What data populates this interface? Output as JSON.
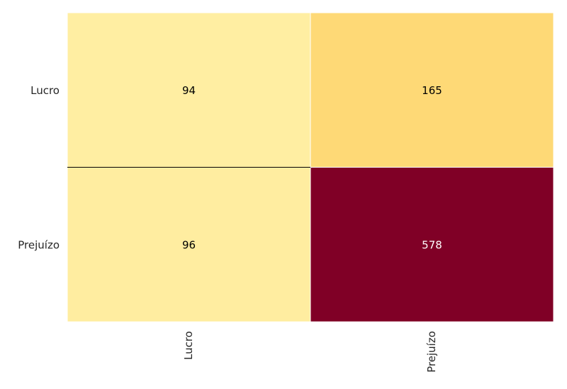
{
  "chart_data": {
    "type": "heatmap",
    "title": "",
    "xlabel": "",
    "ylabel": "",
    "x_categories": [
      "Lucro",
      "Prejuízo"
    ],
    "y_categories": [
      "Lucro",
      "Prejuízo"
    ],
    "values": [
      [
        94,
        165
      ],
      [
        96,
        578
      ]
    ],
    "colormap": "YlOrRd",
    "color_range": [
      94,
      578
    ],
    "grid": false,
    "legend": "none"
  }
}
